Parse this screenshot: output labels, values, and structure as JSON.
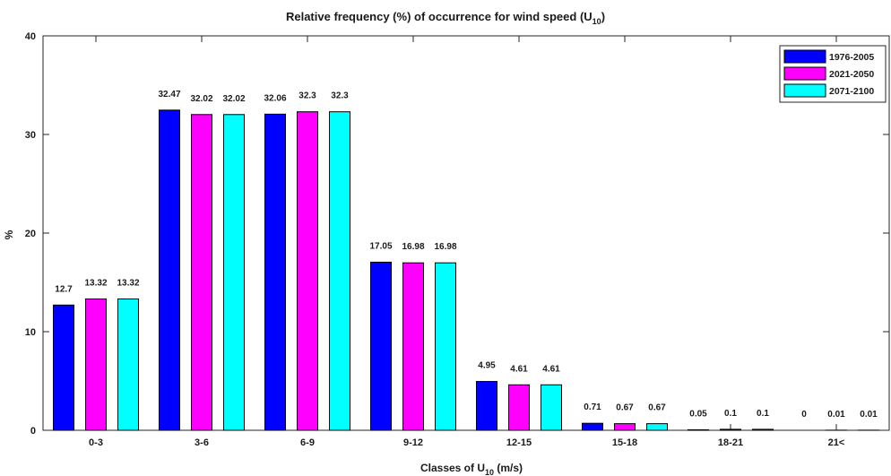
{
  "chart_data": {
    "type": "bar",
    "title_main": "Relative frequency (%) of occurrence for wind speed (U",
    "title_sub": "10",
    "title_end": ")",
    "xlabel_main": "Classes of U",
    "xlabel_sub": "10",
    "xlabel_end": " (m/s)",
    "ylabel": "%",
    "categories": [
      "0-3",
      "3-6",
      "6-9",
      "9-12",
      "12-15",
      "15-18",
      "18-21",
      "21<"
    ],
    "ylim": [
      0,
      40
    ],
    "yticks": [
      0,
      10,
      20,
      30,
      40
    ],
    "grid": false,
    "legend_position": "top-right",
    "series": [
      {
        "name": "1976-2005",
        "color": "#0000ff",
        "values": [
          12.7,
          32.47,
          32.06,
          17.05,
          4.95,
          0.71,
          0.05,
          0
        ],
        "labels": [
          "12.7",
          "32.47",
          "32.06",
          "17.05",
          "4.95",
          "0.71",
          "0.05",
          "0"
        ]
      },
      {
        "name": "2021-2050",
        "color": "#ff00ff",
        "values": [
          13.32,
          32.02,
          32.3,
          16.98,
          4.61,
          0.67,
          0.1,
          0.01
        ],
        "labels": [
          "13.32",
          "32.02",
          "32.3",
          "16.98",
          "4.61",
          "0.67",
          "0.1",
          "0.01"
        ]
      },
      {
        "name": "2071-2100",
        "color": "#00ffff",
        "values": [
          13.32,
          32.02,
          32.3,
          16.98,
          4.61,
          0.67,
          0.1,
          0.01
        ],
        "labels": [
          "13.32",
          "32.02",
          "32.3",
          "16.98",
          "4.61",
          "0.67",
          "0.1",
          "0.01"
        ]
      }
    ]
  }
}
